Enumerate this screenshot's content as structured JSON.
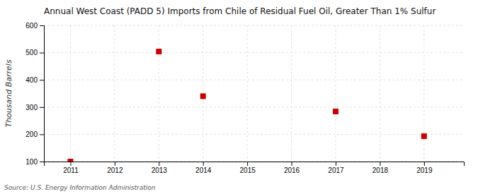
{
  "chart_data": {
    "type": "scatter",
    "title": "Annual West Coast (PADD 5) Imports from Chile of Residual Fuel Oil, Greater Than 1% Sulfur",
    "ylabel": "Thousand Barrels",
    "source": "Source: U.S. Energy Information Administration",
    "x": [
      2011,
      2013,
      2014,
      2017,
      2019
    ],
    "values": [
      100,
      504,
      340,
      284,
      193
    ],
    "color": "#cc0000",
    "marker": "square",
    "xlim": [
      2010.4,
      2019.9
    ],
    "ylim": [
      100,
      600
    ],
    "xticks": [
      2011,
      2012,
      2013,
      2014,
      2015,
      2016,
      2017,
      2018,
      2019
    ],
    "yticks": [
      100,
      200,
      300,
      400,
      500,
      600
    ],
    "grid": true
  }
}
